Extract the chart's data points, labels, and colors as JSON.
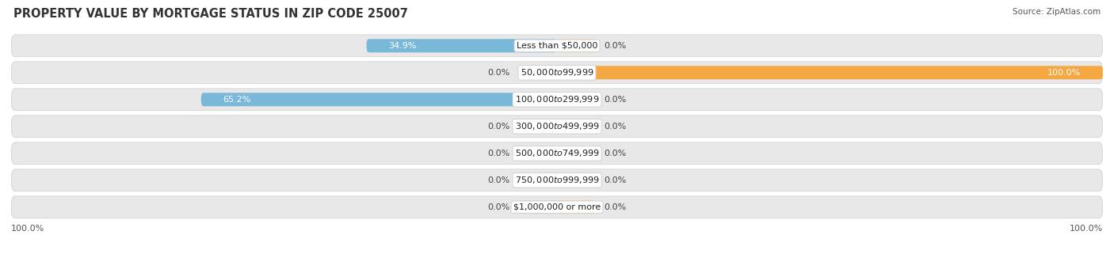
{
  "title": "PROPERTY VALUE BY MORTGAGE STATUS IN ZIP CODE 25007",
  "source": "Source: ZipAtlas.com",
  "categories": [
    "Less than $50,000",
    "$50,000 to $99,999",
    "$100,000 to $299,999",
    "$300,000 to $499,999",
    "$500,000 to $749,999",
    "$750,000 to $999,999",
    "$1,000,000 or more"
  ],
  "without_mortgage": [
    34.9,
    0.0,
    65.2,
    0.0,
    0.0,
    0.0,
    0.0
  ],
  "with_mortgage": [
    0.0,
    100.0,
    0.0,
    0.0,
    0.0,
    0.0,
    0.0
  ],
  "color_without": "#7ab8d9",
  "color_without_stub": "#b8d8ec",
  "color_with": "#f5a742",
  "color_with_stub": "#f5d09e",
  "bg_row_color": "#e8e8e8",
  "bg_row_color_alt": "#f0f0f0",
  "title_fontsize": 10.5,
  "source_fontsize": 7.5,
  "label_fontsize": 8,
  "category_fontsize": 8,
  "legend_fontsize": 8,
  "axis_label_fontsize": 8
}
